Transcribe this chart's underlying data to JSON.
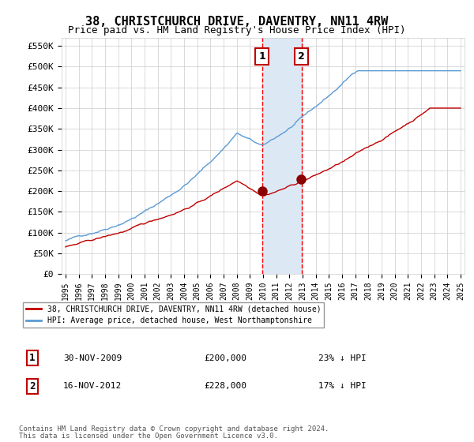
{
  "title": "38, CHRISTCHURCH DRIVE, DAVENTRY, NN11 4RW",
  "subtitle": "Price paid vs. HM Land Registry's House Price Index (HPI)",
  "title_fontsize": 11,
  "subtitle_fontsize": 9,
  "ylim": [
    0,
    570000
  ],
  "yticks": [
    0,
    50000,
    100000,
    150000,
    200000,
    250000,
    300000,
    350000,
    400000,
    450000,
    500000,
    550000
  ],
  "ytick_labels": [
    "£0",
    "£50K",
    "£100K",
    "£150K",
    "£200K",
    "£250K",
    "£300K",
    "£350K",
    "£400K",
    "£450K",
    "£500K",
    "£550K"
  ],
  "sale1_date": "30-NOV-2009",
  "sale1_price": 200000,
  "sale1_price_str": "£200,000",
  "sale1_pct": "23%",
  "sale2_date": "16-NOV-2012",
  "sale2_price": 228000,
  "sale2_price_str": "£228,000",
  "sale2_pct": "17%",
  "hpi_color": "#5b9bd5",
  "price_color": "#c00000",
  "sale_marker_color": "#8b0000",
  "vline_color": "#ff0000",
  "shading_color": "#dce9f5",
  "background_color": "#ffffff",
  "grid_color": "#cccccc",
  "legend_label_price": "38, CHRISTCHURCH DRIVE, DAVENTRY, NN11 4RW (detached house)",
  "legend_label_hpi": "HPI: Average price, detached house, West Northamptonshire",
  "footnote1": "Contains HM Land Registry data © Crown copyright and database right 2024.",
  "footnote2": "This data is licensed under the Open Government Licence v3.0.",
  "x_start_year": 1995,
  "x_end_year": 2025
}
